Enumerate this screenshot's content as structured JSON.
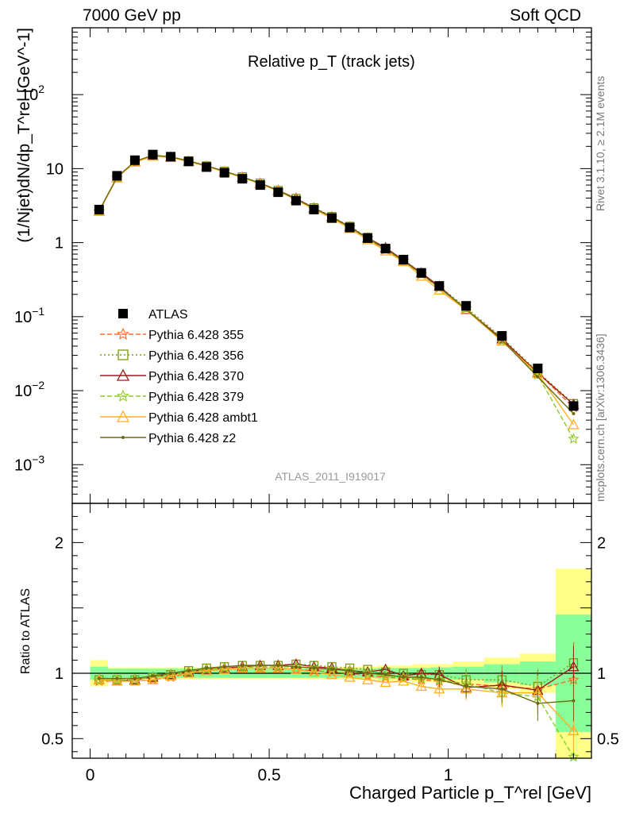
{
  "header": {
    "left": "7000 GeV pp",
    "right": "Soft QCD"
  },
  "side": {
    "rivet": "Rivet 3.1.10, ≥ 2.1M events",
    "mcplots": "mcplots.cern.ch [arXiv:1306.3436]"
  },
  "chart_data": {
    "type": "line",
    "title": "Relative p_T (track jets)",
    "analysis_label": "ATLAS_2011_I919017",
    "xlabel": "Charged Particle p_T^rel [GeV]",
    "ylabel": "(1/Njet)dN/dp_T^rel [GeV^-1]",
    "ratio_ylabel": "Ratio to ATLAS",
    "xlim": [
      -0.05,
      1.4
    ],
    "ylim": [
      0.0003,
      800
    ],
    "yscale": "log",
    "ratio_ylim": [
      0.35,
      2.3
    ],
    "x_ticks": [
      "0",
      "0.5",
      "1"
    ],
    "ratio_ticks": [
      "0.5",
      "1",
      "2"
    ],
    "legend_position": "lower-left",
    "x": [
      0.025,
      0.075,
      0.125,
      0.175,
      0.225,
      0.275,
      0.325,
      0.375,
      0.425,
      0.475,
      0.525,
      0.575,
      0.625,
      0.675,
      0.725,
      0.775,
      0.825,
      0.875,
      0.925,
      0.975,
      1.05,
      1.15,
      1.25,
      1.35
    ],
    "data": {
      "name": "ATLAS",
      "values": [
        2.8,
        8.0,
        13.0,
        15.5,
        14.5,
        12.5,
        10.5,
        8.8,
        7.3,
        6.0,
        4.8,
        3.7,
        2.8,
        2.15,
        1.6,
        1.15,
        0.83,
        0.59,
        0.39,
        0.26,
        0.14,
        0.055,
        0.02,
        0.0062
      ],
      "band_inner": [
        0.05,
        0.035,
        0.035,
        0.035,
        0.035,
        0.035,
        0.035,
        0.035,
        0.035,
        0.035,
        0.035,
        0.035,
        0.035,
        0.035,
        0.035,
        0.035,
        0.04,
        0.04,
        0.04,
        0.045,
        0.05,
        0.07,
        0.09,
        0.45
      ],
      "band_outer": [
        0.1,
        0.045,
        0.045,
        0.045,
        0.045,
        0.045,
        0.045,
        0.045,
        0.045,
        0.045,
        0.045,
        0.045,
        0.045,
        0.045,
        0.05,
        0.05,
        0.06,
        0.06,
        0.07,
        0.07,
        0.09,
        0.12,
        0.15,
        0.8
      ]
    },
    "series": [
      {
        "name": "Pythia 6.428 355",
        "color": "#ff6b22",
        "dash": "6,3",
        "marker": "star",
        "ratio": [
          0.94,
          0.94,
          0.94,
          0.95,
          0.97,
          1.0,
          1.02,
          1.03,
          1.04,
          1.04,
          1.04,
          1.03,
          1.02,
          1.01,
          1.0,
          0.98,
          0.97,
          0.96,
          0.95,
          0.94,
          0.92,
          0.9,
          0.88,
          0.95
        ]
      },
      {
        "name": "Pythia 6.428 356",
        "color": "#7a9a10",
        "dash": "2,3",
        "marker": "square",
        "ratio": [
          0.95,
          0.95,
          0.95,
          0.97,
          0.99,
          1.02,
          1.04,
          1.05,
          1.06,
          1.06,
          1.06,
          1.07,
          1.06,
          1.05,
          1.04,
          1.03,
          1.01,
          1.0,
          0.99,
          0.99,
          0.95,
          0.95,
          0.9,
          1.08
        ]
      },
      {
        "name": "Pythia 6.428 370",
        "color": "#9a1a1a",
        "dash": "",
        "marker": "triangle",
        "ratio": [
          0.95,
          0.94,
          0.95,
          0.97,
          0.99,
          1.01,
          1.03,
          1.04,
          1.05,
          1.06,
          1.06,
          1.07,
          1.05,
          1.04,
          1.02,
          1.01,
          1.03,
          0.98,
          1.0,
          0.99,
          0.89,
          0.91,
          0.87,
          1.05
        ]
      },
      {
        "name": "Pythia 6.428 379",
        "color": "#8acc22",
        "dash": "6,3",
        "marker": "star",
        "ratio": [
          0.95,
          0.95,
          0.95,
          0.97,
          0.99,
          1.01,
          1.03,
          1.04,
          1.04,
          1.05,
          1.05,
          1.05,
          1.04,
          1.03,
          1.02,
          1.0,
          0.98,
          0.97,
          0.96,
          0.95,
          0.92,
          0.85,
          0.82,
          0.36
        ]
      },
      {
        "name": "Pythia 6.428 ambt1",
        "color": "#ffb020",
        "dash": "",
        "marker": "triangle",
        "ratio": [
          0.95,
          0.94,
          0.94,
          0.95,
          0.98,
          1.0,
          1.02,
          1.03,
          1.04,
          1.04,
          1.04,
          1.03,
          1.01,
          0.99,
          0.97,
          0.95,
          0.93,
          0.94,
          0.9,
          0.88,
          0.88,
          0.85,
          0.85,
          0.56
        ]
      },
      {
        "name": "Pythia 6.428 z2",
        "color": "#6b6b10",
        "dash": "",
        "marker": "dot",
        "ratio": [
          0.96,
          0.96,
          0.96,
          0.98,
          1.0,
          1.02,
          1.04,
          1.05,
          1.06,
          1.06,
          1.06,
          1.05,
          1.04,
          1.03,
          1.02,
          1.0,
          0.99,
          0.97,
          0.97,
          0.95,
          0.9,
          0.88,
          0.77,
          0.79
        ]
      }
    ]
  }
}
